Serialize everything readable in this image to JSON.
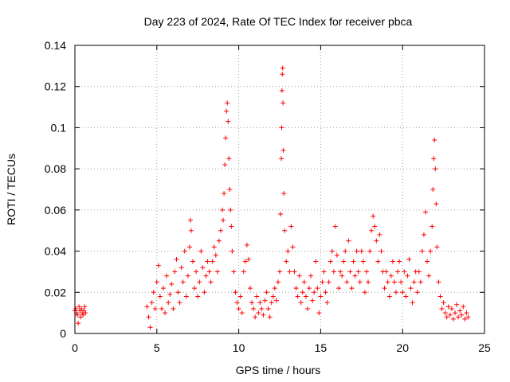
{
  "chart_data": {
    "type": "scatter",
    "title": "Day 223 of 2024, Rate Of TEC Index for receiver pbca",
    "xlabel": "GPS time / hours",
    "ylabel": "ROTI / TECUs",
    "xlim": [
      0,
      25
    ],
    "ylim": [
      0,
      0.14
    ],
    "x_ticks": [
      0,
      5,
      10,
      15,
      20,
      25
    ],
    "y_ticks": [
      0,
      0.02,
      0.04,
      0.06,
      0.08,
      0.1,
      0.12,
      0.14
    ],
    "x_tick_labels": [
      "0",
      "5",
      "10",
      "15",
      "20",
      "25"
    ],
    "y_tick_labels": [
      "0",
      "0.02",
      "0.04",
      "0.06",
      "0.08",
      "0.1",
      "0.12",
      "0.14"
    ],
    "grid": true,
    "marker": "plus",
    "color": "#ff0000",
    "points": [
      [
        0.0,
        0.011
      ],
      [
        0.05,
        0.012
      ],
      [
        0.1,
        0.01
      ],
      [
        0.15,
        0.009
      ],
      [
        0.2,
        0.005
      ],
      [
        0.25,
        0.013
      ],
      [
        0.3,
        0.011
      ],
      [
        0.35,
        0.008
      ],
      [
        0.4,
        0.012
      ],
      [
        0.45,
        0.01
      ],
      [
        0.5,
        0.009
      ],
      [
        0.55,
        0.011
      ],
      [
        0.6,
        0.013
      ],
      [
        0.65,
        0.01
      ],
      [
        4.4,
        0.013
      ],
      [
        4.5,
        0.008
      ],
      [
        4.6,
        0.003
      ],
      [
        4.7,
        0.015
      ],
      [
        4.8,
        0.02
      ],
      [
        4.9,
        0.012
      ],
      [
        5.0,
        0.025
      ],
      [
        5.1,
        0.033
      ],
      [
        5.2,
        0.018
      ],
      [
        5.3,
        0.012
      ],
      [
        5.4,
        0.022
      ],
      [
        5.5,
        0.01
      ],
      [
        5.6,
        0.028
      ],
      [
        5.7,
        0.015
      ],
      [
        5.8,
        0.019
      ],
      [
        5.9,
        0.024
      ],
      [
        6.0,
        0.012
      ],
      [
        6.1,
        0.03
      ],
      [
        6.2,
        0.036
      ],
      [
        6.3,
        0.02
      ],
      [
        6.4,
        0.015
      ],
      [
        6.5,
        0.032
      ],
      [
        6.6,
        0.025
      ],
      [
        6.7,
        0.04
      ],
      [
        6.8,
        0.018
      ],
      [
        6.9,
        0.028
      ],
      [
        7.0,
        0.042
      ],
      [
        7.05,
        0.055
      ],
      [
        7.1,
        0.05
      ],
      [
        7.2,
        0.035
      ],
      [
        7.3,
        0.022
      ],
      [
        7.4,
        0.03
      ],
      [
        7.5,
        0.018
      ],
      [
        7.6,
        0.025
      ],
      [
        7.7,
        0.04
      ],
      [
        7.8,
        0.032
      ],
      [
        7.9,
        0.02
      ],
      [
        8.0,
        0.028
      ],
      [
        8.1,
        0.035
      ],
      [
        8.2,
        0.03
      ],
      [
        8.3,
        0.025
      ],
      [
        8.4,
        0.035
      ],
      [
        8.5,
        0.042
      ],
      [
        8.6,
        0.038
      ],
      [
        8.7,
        0.03
      ],
      [
        8.8,
        0.045
      ],
      [
        8.9,
        0.05
      ],
      [
        9.0,
        0.06
      ],
      [
        9.05,
        0.055
      ],
      [
        9.1,
        0.068
      ],
      [
        9.15,
        0.082
      ],
      [
        9.2,
        0.095
      ],
      [
        9.25,
        0.108
      ],
      [
        9.3,
        0.112
      ],
      [
        9.35,
        0.103
      ],
      [
        9.4,
        0.085
      ],
      [
        9.45,
        0.07
      ],
      [
        9.5,
        0.06
      ],
      [
        9.55,
        0.052
      ],
      [
        9.6,
        0.04
      ],
      [
        9.7,
        0.03
      ],
      [
        9.8,
        0.02
      ],
      [
        9.9,
        0.015
      ],
      [
        10.0,
        0.012
      ],
      [
        10.1,
        0.018
      ],
      [
        10.2,
        0.01
      ],
      [
        10.3,
        0.03
      ],
      [
        10.4,
        0.035
      ],
      [
        10.5,
        0.043
      ],
      [
        10.6,
        0.036
      ],
      [
        10.7,
        0.022
      ],
      [
        10.8,
        0.015
      ],
      [
        10.9,
        0.012
      ],
      [
        11.0,
        0.008
      ],
      [
        11.1,
        0.018
      ],
      [
        11.2,
        0.01
      ],
      [
        11.3,
        0.015
      ],
      [
        11.4,
        0.012
      ],
      [
        11.5,
        0.009
      ],
      [
        11.6,
        0.016
      ],
      [
        11.7,
        0.02
      ],
      [
        11.8,
        0.012
      ],
      [
        11.9,
        0.008
      ],
      [
        12.0,
        0.015
      ],
      [
        12.1,
        0.018
      ],
      [
        12.2,
        0.022
      ],
      [
        12.3,
        0.016
      ],
      [
        12.4,
        0.025
      ],
      [
        12.5,
        0.03
      ],
      [
        12.55,
        0.058
      ],
      [
        12.6,
        0.085
      ],
      [
        12.62,
        0.1
      ],
      [
        12.64,
        0.118
      ],
      [
        12.66,
        0.126
      ],
      [
        12.68,
        0.129
      ],
      [
        12.7,
        0.112
      ],
      [
        12.72,
        0.089
      ],
      [
        12.75,
        0.068
      ],
      [
        12.8,
        0.05
      ],
      [
        12.9,
        0.035
      ],
      [
        13.0,
        0.04
      ],
      [
        13.1,
        0.03
      ],
      [
        13.2,
        0.052
      ],
      [
        13.3,
        0.042
      ],
      [
        13.4,
        0.03
      ],
      [
        13.5,
        0.022
      ],
      [
        13.6,
        0.018
      ],
      [
        13.7,
        0.028
      ],
      [
        13.8,
        0.015
      ],
      [
        13.9,
        0.02
      ],
      [
        14.0,
        0.025
      ],
      [
        14.1,
        0.018
      ],
      [
        14.2,
        0.012
      ],
      [
        14.3,
        0.022
      ],
      [
        14.4,
        0.028
      ],
      [
        14.5,
        0.016
      ],
      [
        14.6,
        0.02
      ],
      [
        14.7,
        0.035
      ],
      [
        14.8,
        0.022
      ],
      [
        14.9,
        0.01
      ],
      [
        15.0,
        0.018
      ],
      [
        15.1,
        0.025
      ],
      [
        15.2,
        0.03
      ],
      [
        15.3,
        0.02
      ],
      [
        15.4,
        0.015
      ],
      [
        15.5,
        0.025
      ],
      [
        15.6,
        0.035
      ],
      [
        15.7,
        0.04
      ],
      [
        15.8,
        0.03
      ],
      [
        15.9,
        0.052
      ],
      [
        16.0,
        0.038
      ],
      [
        16.1,
        0.022
      ],
      [
        16.2,
        0.03
      ],
      [
        16.3,
        0.028
      ],
      [
        16.4,
        0.035
      ],
      [
        16.5,
        0.04
      ],
      [
        16.6,
        0.025
      ],
      [
        16.7,
        0.045
      ],
      [
        16.8,
        0.03
      ],
      [
        16.9,
        0.022
      ],
      [
        17.0,
        0.035
      ],
      [
        17.1,
        0.028
      ],
      [
        17.2,
        0.04
      ],
      [
        17.3,
        0.03
      ],
      [
        17.4,
        0.025
      ],
      [
        17.5,
        0.04
      ],
      [
        17.6,
        0.035
      ],
      [
        17.7,
        0.02
      ],
      [
        17.8,
        0.03
      ],
      [
        17.9,
        0.025
      ],
      [
        18.0,
        0.04
      ],
      [
        18.1,
        0.05
      ],
      [
        18.2,
        0.057
      ],
      [
        18.3,
        0.052
      ],
      [
        18.4,
        0.045
      ],
      [
        18.5,
        0.035
      ],
      [
        18.6,
        0.048
      ],
      [
        18.7,
        0.04
      ],
      [
        18.8,
        0.03
      ],
      [
        18.9,
        0.022
      ],
      [
        19.0,
        0.03
      ],
      [
        19.1,
        0.025
      ],
      [
        19.2,
        0.018
      ],
      [
        19.3,
        0.028
      ],
      [
        19.4,
        0.035
      ],
      [
        19.5,
        0.025
      ],
      [
        19.6,
        0.02
      ],
      [
        19.7,
        0.03
      ],
      [
        19.8,
        0.035
      ],
      [
        19.9,
        0.025
      ],
      [
        20.0,
        0.02
      ],
      [
        20.1,
        0.03
      ],
      [
        20.2,
        0.018
      ],
      [
        20.3,
        0.028
      ],
      [
        20.4,
        0.036
      ],
      [
        20.5,
        0.022
      ],
      [
        20.6,
        0.015
      ],
      [
        20.7,
        0.025
      ],
      [
        20.8,
        0.03
      ],
      [
        20.9,
        0.02
      ],
      [
        21.0,
        0.03
      ],
      [
        21.1,
        0.025
      ],
      [
        21.2,
        0.04
      ],
      [
        21.3,
        0.048
      ],
      [
        21.4,
        0.059
      ],
      [
        21.5,
        0.035
      ],
      [
        21.6,
        0.028
      ],
      [
        21.7,
        0.04
      ],
      [
        21.8,
        0.052
      ],
      [
        21.85,
        0.07
      ],
      [
        21.9,
        0.085
      ],
      [
        21.95,
        0.094
      ],
      [
        22.0,
        0.08
      ],
      [
        22.05,
        0.063
      ],
      [
        22.1,
        0.042
      ],
      [
        22.2,
        0.025
      ],
      [
        22.3,
        0.018
      ],
      [
        22.4,
        0.012
      ],
      [
        22.5,
        0.015
      ],
      [
        22.6,
        0.01
      ],
      [
        22.7,
        0.008
      ],
      [
        22.8,
        0.013
      ],
      [
        22.9,
        0.009
      ],
      [
        23.0,
        0.012
      ],
      [
        23.1,
        0.007
      ],
      [
        23.2,
        0.01
      ],
      [
        23.3,
        0.014
      ],
      [
        23.4,
        0.008
      ],
      [
        23.5,
        0.011
      ],
      [
        23.6,
        0.009
      ],
      [
        23.7,
        0.013
      ],
      [
        23.8,
        0.007
      ],
      [
        23.9,
        0.01
      ],
      [
        24.0,
        0.008
      ]
    ]
  }
}
